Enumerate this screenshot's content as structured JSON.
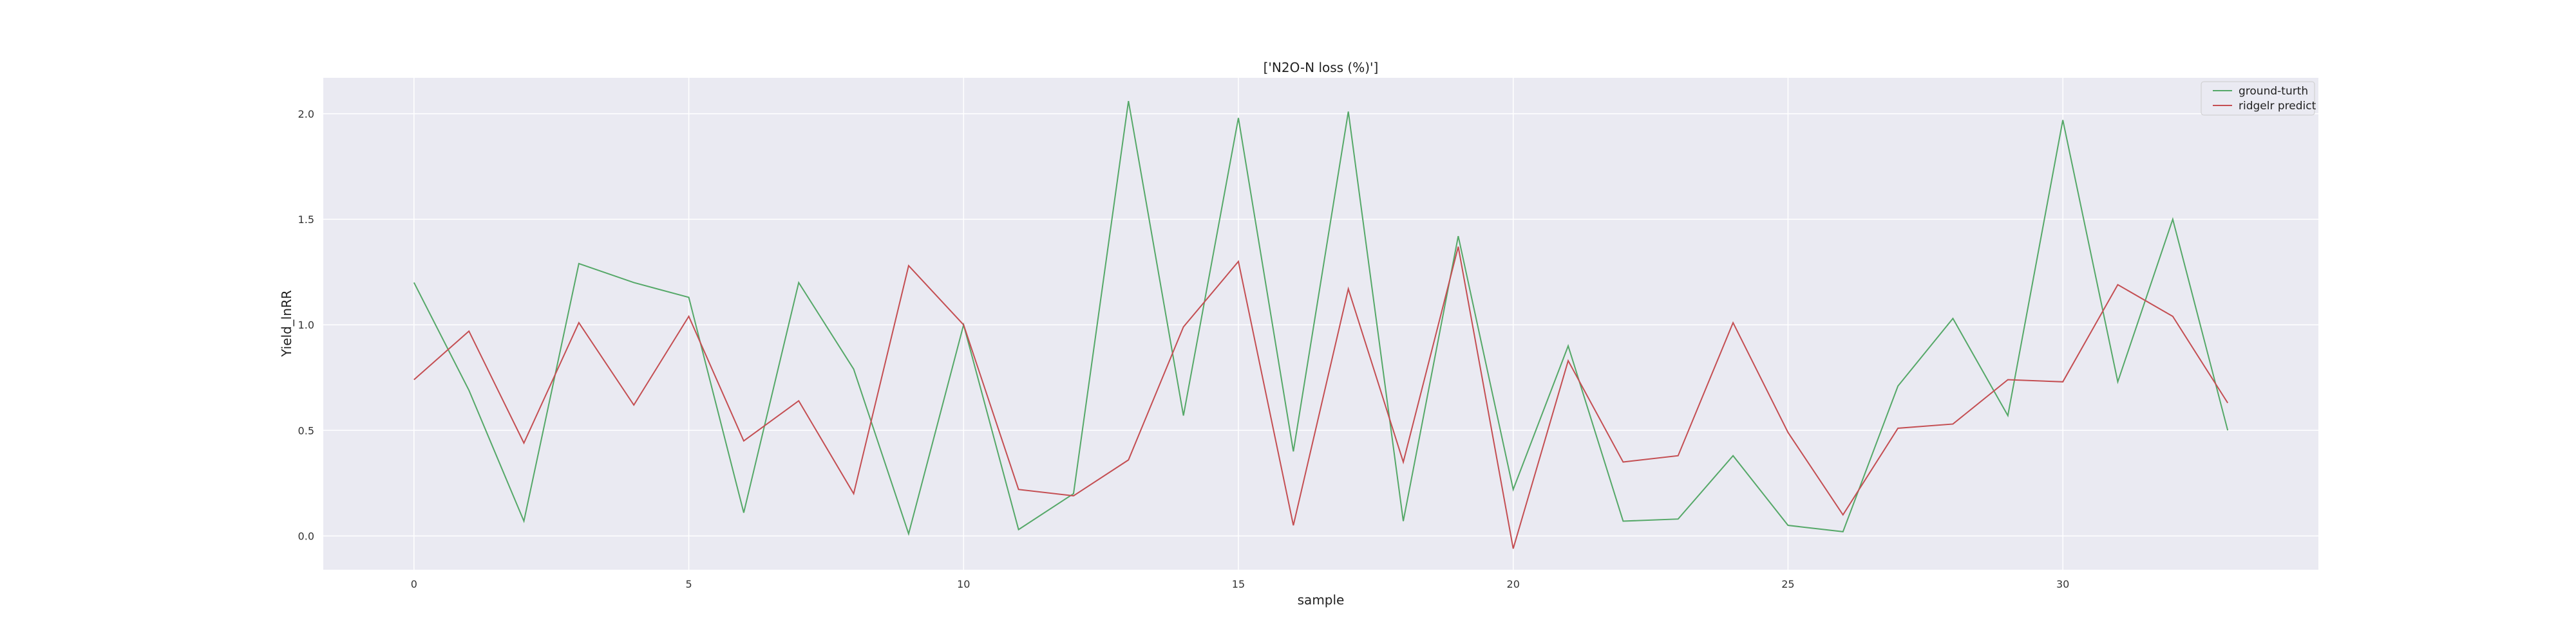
{
  "chart_data": {
    "type": "line",
    "title": "['N2O-N loss (%)']",
    "xlabel": "sample",
    "ylabel": "Yield_lnRR",
    "x": [
      0,
      1,
      2,
      3,
      4,
      5,
      6,
      7,
      8,
      9,
      10,
      11,
      12,
      13,
      14,
      15,
      16,
      17,
      18,
      19,
      20,
      21,
      22,
      23,
      24,
      25,
      26,
      27,
      28,
      29,
      30,
      31,
      32,
      33
    ],
    "xlim": [
      -1.65,
      34.65
    ],
    "ylim": [
      -0.16,
      2.17
    ],
    "xticks": [
      0,
      5,
      10,
      15,
      20,
      25,
      30
    ],
    "yticks": [
      0.0,
      0.5,
      1.0,
      1.5,
      2.0
    ],
    "xtick_labels": [
      "0",
      "5",
      "10",
      "15",
      "20",
      "25",
      "30"
    ],
    "ytick_labels": [
      "0.0",
      "0.5",
      "1.0",
      "1.5",
      "2.0"
    ],
    "grid": true,
    "legend_position": "top-right",
    "background": "#eaeaf2",
    "series": [
      {
        "name": "ground-turth",
        "color": "#55a868",
        "values": [
          1.2,
          0.69,
          0.07,
          1.29,
          1.2,
          1.13,
          0.11,
          1.2,
          0.79,
          0.01,
          1.0,
          0.03,
          0.2,
          2.06,
          0.57,
          1.98,
          0.4,
          2.01,
          0.07,
          1.42,
          0.22,
          0.9,
          0.07,
          0.08,
          0.38,
          0.05,
          0.02,
          0.71,
          1.03,
          0.57,
          1.97,
          0.73,
          1.5,
          0.5
        ]
      },
      {
        "name": "ridgelr predict",
        "color": "#c44e52",
        "values": [
          0.74,
          0.97,
          0.44,
          1.01,
          0.62,
          1.04,
          0.45,
          0.64,
          0.2,
          1.28,
          1.0,
          0.22,
          0.19,
          0.36,
          0.99,
          1.3,
          0.05,
          1.17,
          0.35,
          1.37,
          -0.06,
          0.83,
          0.35,
          0.38,
          1.01,
          0.49,
          0.1,
          0.51,
          0.53,
          0.74,
          0.73,
          1.19,
          1.04,
          0.63
        ]
      }
    ]
  }
}
